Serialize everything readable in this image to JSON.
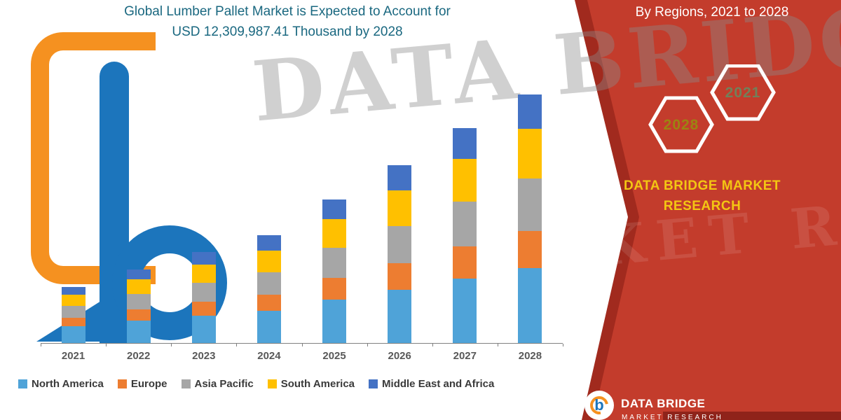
{
  "header": {
    "title_line1": "Global Lumber Pallet Market is Expected to Account for",
    "title_line2": "USD 12,309,987.41 Thousand by 2028",
    "byline": "By Regions, 2021 to 2028"
  },
  "side_panel": {
    "hexagons": [
      {
        "label": "2028",
        "text_color": "#9C8412"
      },
      {
        "label": "2021",
        "text_color": "#72805A"
      }
    ],
    "brand_line1": "DATA BRIDGE MARKET",
    "brand_line2": "RESEARCH"
  },
  "footer": {
    "brand": "DATA BRIDGE",
    "sub": "MARKET RESEARCH",
    "logo_letter": "b"
  },
  "watermark": {
    "line1": "DATA BRIDGE",
    "line2": "MARKET RESEARCH"
  },
  "colors": {
    "red": "#C33C2C",
    "red_dark": "#A12A1E",
    "title_teal": "#1A6880",
    "brand_yellow": "#F3C613",
    "logo_orange": "#F59120",
    "logo_blue": "#1C75BC"
  },
  "chart_data": {
    "type": "bar",
    "stacked": true,
    "title": "Global Lumber Pallet Market is Expected to Account for USD 12,309,987.41 Thousand by 2028",
    "subtitle": "By Regions, 2021 to 2028",
    "categories": [
      "2021",
      "2022",
      "2023",
      "2024",
      "2025",
      "2026",
      "2027",
      "2028"
    ],
    "series": [
      {
        "name": "North America",
        "color": "#4FA3D8",
        "values": [
          24,
          32,
          39,
          46,
          62,
          76,
          92,
          107
        ]
      },
      {
        "name": "Europe",
        "color": "#ED7D31",
        "values": [
          12,
          16,
          20,
          23,
          31,
          38,
          46,
          53
        ]
      },
      {
        "name": "Asia Pacific",
        "color": "#A6A6A6",
        "values": [
          17,
          22,
          27,
          32,
          43,
          53,
          64,
          75
        ]
      },
      {
        "name": "South America",
        "color": "#FFC000",
        "values": [
          16,
          21,
          26,
          31,
          41,
          51,
          61,
          71
        ]
      },
      {
        "name": "Middle East and Africa",
        "color": "#4472C4",
        "values": [
          11,
          14,
          18,
          22,
          28,
          36,
          44,
          49
        ]
      }
    ],
    "totals": [
      80,
      105,
      130,
      154,
      205,
      254,
      307,
      355
    ],
    "value_note": "relative units estimated from bar heights; no y-axis scale shown",
    "xlabel": "",
    "ylabel": "",
    "ylim": [
      0,
      360
    ],
    "grid": false,
    "legend_position": "bottom"
  }
}
